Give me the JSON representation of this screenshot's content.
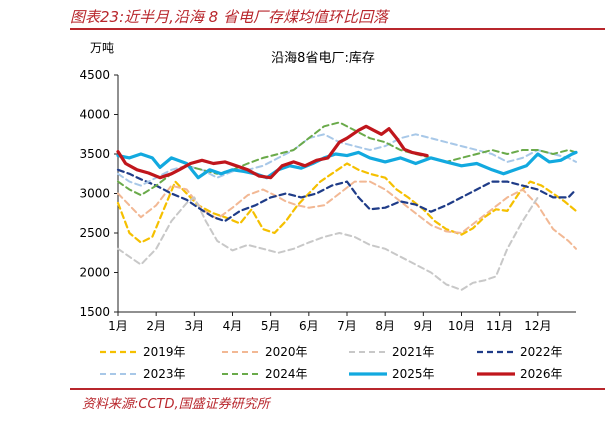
{
  "figure": {
    "title": "图表23:近半月,沿海 8 省电厂存煤均值环比回落",
    "source": "资料来源:CCTD,国盛证券研究所",
    "accent_color": "#b8262c"
  },
  "chart_data": {
    "type": "line",
    "title": "沿海8省电厂:库存",
    "ylabel": "万吨",
    "xlabel": "",
    "ylim": [
      1500,
      4500
    ],
    "yticks": [
      1500,
      2000,
      2500,
      3000,
      3500,
      4000,
      4500
    ],
    "xlim": [
      1,
      13
    ],
    "xtick_labels": [
      "1月",
      "2月",
      "3月",
      "4月",
      "5月",
      "6月",
      "7月",
      "8月",
      "9月",
      "10月",
      "11月",
      "12月"
    ],
    "grid": false,
    "legend_position": "bottom",
    "series": [
      {
        "name": "2019年",
        "color": "#f5c000",
        "dash": "6,4",
        "width": 2.2,
        "points": [
          [
            1,
            2880
          ],
          [
            1.3,
            2500
          ],
          [
            1.6,
            2380
          ],
          [
            1.9,
            2450
          ],
          [
            2.2,
            2800
          ],
          [
            2.5,
            3150
          ],
          [
            2.8,
            3000
          ],
          [
            3.1,
            2850
          ],
          [
            3.5,
            2750
          ],
          [
            3.8,
            2700
          ],
          [
            4.2,
            2620
          ],
          [
            4.5,
            2800
          ],
          [
            4.8,
            2550
          ],
          [
            5.1,
            2500
          ],
          [
            5.4,
            2650
          ],
          [
            5.7,
            2850
          ],
          [
            6.0,
            3000
          ],
          [
            6.3,
            3150
          ],
          [
            6.6,
            3250
          ],
          [
            7.0,
            3380
          ],
          [
            7.3,
            3300
          ],
          [
            7.6,
            3250
          ],
          [
            8.0,
            3200
          ],
          [
            8.3,
            3050
          ],
          [
            8.6,
            2950
          ],
          [
            9.0,
            2800
          ],
          [
            9.3,
            2650
          ],
          [
            9.6,
            2550
          ],
          [
            10.0,
            2480
          ],
          [
            10.3,
            2560
          ],
          [
            10.6,
            2700
          ],
          [
            10.9,
            2800
          ],
          [
            11.2,
            2780
          ],
          [
            11.5,
            3000
          ],
          [
            11.8,
            3150
          ],
          [
            12.1,
            3100
          ],
          [
            12.4,
            3000
          ],
          [
            12.7,
            2900
          ],
          [
            13.0,
            2780
          ]
        ]
      },
      {
        "name": "2020年",
        "color": "#f2b894",
        "dash": "6,4",
        "width": 2,
        "points": [
          [
            1,
            3000
          ],
          [
            1.3,
            2850
          ],
          [
            1.6,
            2700
          ],
          [
            2.0,
            2850
          ],
          [
            2.4,
            3100
          ],
          [
            2.8,
            3050
          ],
          [
            3.2,
            2800
          ],
          [
            3.6,
            2680
          ],
          [
            4.0,
            2820
          ],
          [
            4.4,
            2980
          ],
          [
            4.8,
            3050
          ],
          [
            5.1,
            2980
          ],
          [
            5.4,
            2900
          ],
          [
            5.7,
            2850
          ],
          [
            6.0,
            2820
          ],
          [
            6.4,
            2850
          ],
          [
            6.8,
            3000
          ],
          [
            7.2,
            3150
          ],
          [
            7.6,
            3150
          ],
          [
            8.0,
            3050
          ],
          [
            8.4,
            2900
          ],
          [
            8.8,
            2750
          ],
          [
            9.2,
            2600
          ],
          [
            9.6,
            2520
          ],
          [
            10.0,
            2500
          ],
          [
            10.4,
            2650
          ],
          [
            10.8,
            2800
          ],
          [
            11.2,
            2950
          ],
          [
            11.6,
            3050
          ],
          [
            12.0,
            2850
          ],
          [
            12.4,
            2550
          ],
          [
            12.8,
            2400
          ],
          [
            13.0,
            2300
          ]
        ]
      },
      {
        "name": "2021年",
        "color": "#c8c8c8",
        "dash": "6,4",
        "width": 2,
        "points": [
          [
            1,
            2300
          ],
          [
            1.3,
            2200
          ],
          [
            1.6,
            2100
          ],
          [
            2.0,
            2300
          ],
          [
            2.4,
            2650
          ],
          [
            2.8,
            2880
          ],
          [
            3.0,
            2950
          ],
          [
            3.3,
            2650
          ],
          [
            3.6,
            2400
          ],
          [
            4.0,
            2280
          ],
          [
            4.4,
            2350
          ],
          [
            4.8,
            2300
          ],
          [
            5.2,
            2250
          ],
          [
            5.6,
            2300
          ],
          [
            6.0,
            2380
          ],
          [
            6.4,
            2450
          ],
          [
            6.8,
            2500
          ],
          [
            7.2,
            2450
          ],
          [
            7.6,
            2350
          ],
          [
            8.0,
            2300
          ],
          [
            8.4,
            2200
          ],
          [
            8.8,
            2100
          ],
          [
            9.2,
            2000
          ],
          [
            9.6,
            1850
          ],
          [
            10.0,
            1780
          ],
          [
            10.3,
            1870
          ],
          [
            10.6,
            1900
          ],
          [
            10.9,
            1950
          ],
          [
            11.2,
            2300
          ],
          [
            11.6,
            2650
          ],
          [
            12.0,
            2950
          ]
        ]
      },
      {
        "name": "2022年",
        "color": "#1f3c88",
        "dash": "6,4",
        "width": 2.2,
        "points": [
          [
            1,
            3300
          ],
          [
            1.3,
            3250
          ],
          [
            1.6,
            3180
          ],
          [
            2.0,
            3100
          ],
          [
            2.4,
            3000
          ],
          [
            2.8,
            2920
          ],
          [
            3.1,
            2820
          ],
          [
            3.5,
            2700
          ],
          [
            3.8,
            2650
          ],
          [
            4.2,
            2780
          ],
          [
            4.6,
            2850
          ],
          [
            5.0,
            2950
          ],
          [
            5.4,
            3000
          ],
          [
            5.8,
            2950
          ],
          [
            6.2,
            3000
          ],
          [
            6.6,
            3100
          ],
          [
            7.0,
            3150
          ],
          [
            7.3,
            2950
          ],
          [
            7.6,
            2800
          ],
          [
            8.0,
            2820
          ],
          [
            8.4,
            2900
          ],
          [
            8.8,
            2860
          ],
          [
            9.2,
            2770
          ],
          [
            9.6,
            2850
          ],
          [
            10.0,
            2950
          ],
          [
            10.4,
            3050
          ],
          [
            10.8,
            3150
          ],
          [
            11.2,
            3150
          ],
          [
            11.6,
            3100
          ],
          [
            12.0,
            3050
          ],
          [
            12.4,
            2950
          ],
          [
            12.8,
            2950
          ],
          [
            13.0,
            3050
          ]
        ]
      },
      {
        "name": "2023年",
        "color": "#a8c8e8",
        "dash": "6,4",
        "width": 2,
        "points": [
          [
            1,
            3250
          ],
          [
            1.3,
            3150
          ],
          [
            1.6,
            3100
          ],
          [
            2.0,
            3200
          ],
          [
            2.4,
            3300
          ],
          [
            2.8,
            3350
          ],
          [
            3.2,
            3300
          ],
          [
            3.6,
            3200
          ],
          [
            4.0,
            3280
          ],
          [
            4.4,
            3300
          ],
          [
            4.8,
            3350
          ],
          [
            5.2,
            3450
          ],
          [
            5.6,
            3550
          ],
          [
            6.0,
            3700
          ],
          [
            6.4,
            3750
          ],
          [
            6.8,
            3650
          ],
          [
            7.2,
            3600
          ],
          [
            7.6,
            3550
          ],
          [
            8.0,
            3600
          ],
          [
            8.4,
            3700
          ],
          [
            8.8,
            3750
          ],
          [
            9.2,
            3700
          ],
          [
            9.6,
            3650
          ],
          [
            10.0,
            3600
          ],
          [
            10.4,
            3550
          ],
          [
            10.8,
            3500
          ],
          [
            11.2,
            3400
          ],
          [
            11.6,
            3450
          ],
          [
            12.0,
            3550
          ],
          [
            12.4,
            3500
          ],
          [
            12.8,
            3450
          ],
          [
            13.0,
            3400
          ]
        ]
      },
      {
        "name": "2024年",
        "color": "#6aaa4a",
        "dash": "6,4",
        "width": 2,
        "points": [
          [
            1,
            3150
          ],
          [
            1.3,
            3050
          ],
          [
            1.6,
            2980
          ],
          [
            2.0,
            3100
          ],
          [
            2.4,
            3250
          ],
          [
            2.8,
            3350
          ],
          [
            3.2,
            3300
          ],
          [
            3.6,
            3250
          ],
          [
            4.0,
            3300
          ],
          [
            4.4,
            3380
          ],
          [
            4.8,
            3450
          ],
          [
            5.2,
            3500
          ],
          [
            5.6,
            3550
          ],
          [
            6.0,
            3700
          ],
          [
            6.4,
            3850
          ],
          [
            6.8,
            3900
          ],
          [
            7.2,
            3800
          ],
          [
            7.6,
            3700
          ],
          [
            8.0,
            3650
          ],
          [
            8.4,
            3550
          ],
          [
            8.8,
            3500
          ],
          [
            9.2,
            3450
          ],
          [
            9.6,
            3400
          ],
          [
            10.0,
            3450
          ],
          [
            10.4,
            3500
          ],
          [
            10.8,
            3550
          ],
          [
            11.2,
            3500
          ],
          [
            11.6,
            3550
          ],
          [
            12.0,
            3550
          ],
          [
            12.4,
            3500
          ],
          [
            12.8,
            3550
          ],
          [
            13.0,
            3520
          ]
        ]
      },
      {
        "name": "2025年",
        "color": "#12a9df",
        "dash": "",
        "width": 3.2,
        "points": [
          [
            1,
            3480
          ],
          [
            1.3,
            3450
          ],
          [
            1.6,
            3500
          ],
          [
            1.9,
            3450
          ],
          [
            2.1,
            3330
          ],
          [
            2.4,
            3450
          ],
          [
            2.8,
            3380
          ],
          [
            3.1,
            3200
          ],
          [
            3.4,
            3300
          ],
          [
            3.7,
            3250
          ],
          [
            4.0,
            3300
          ],
          [
            4.3,
            3280
          ],
          [
            4.6,
            3250
          ],
          [
            4.9,
            3200
          ],
          [
            5.2,
            3300
          ],
          [
            5.5,
            3350
          ],
          [
            5.8,
            3320
          ],
          [
            6.1,
            3380
          ],
          [
            6.4,
            3450
          ],
          [
            6.7,
            3500
          ],
          [
            7.0,
            3480
          ],
          [
            7.3,
            3520
          ],
          [
            7.6,
            3450
          ],
          [
            8.0,
            3400
          ],
          [
            8.4,
            3450
          ],
          [
            8.8,
            3380
          ],
          [
            9.2,
            3450
          ],
          [
            9.6,
            3400
          ],
          [
            10.0,
            3350
          ],
          [
            10.4,
            3380
          ],
          [
            10.8,
            3300
          ],
          [
            11.1,
            3250
          ],
          [
            11.4,
            3300
          ],
          [
            11.7,
            3350
          ],
          [
            12.0,
            3500
          ],
          [
            12.3,
            3400
          ],
          [
            12.6,
            3420
          ],
          [
            12.9,
            3500
          ],
          [
            13.0,
            3520
          ]
        ]
      },
      {
        "name": "2026年",
        "color": "#c0161c",
        "dash": "",
        "width": 3.2,
        "points": [
          [
            1,
            3530
          ],
          [
            1.2,
            3380
          ],
          [
            1.5,
            3300
          ],
          [
            1.8,
            3260
          ],
          [
            2.1,
            3200
          ],
          [
            2.4,
            3250
          ],
          [
            2.6,
            3300
          ],
          [
            2.9,
            3380
          ],
          [
            3.2,
            3420
          ],
          [
            3.5,
            3380
          ],
          [
            3.8,
            3400
          ],
          [
            4.1,
            3350
          ],
          [
            4.4,
            3300
          ],
          [
            4.7,
            3220
          ],
          [
            5.0,
            3200
          ],
          [
            5.3,
            3350
          ],
          [
            5.6,
            3400
          ],
          [
            5.9,
            3350
          ],
          [
            6.2,
            3420
          ],
          [
            6.5,
            3450
          ],
          [
            6.8,
            3650
          ],
          [
            7.0,
            3700
          ],
          [
            7.3,
            3800
          ],
          [
            7.5,
            3850
          ],
          [
            7.7,
            3800
          ],
          [
            7.9,
            3750
          ],
          [
            8.1,
            3820
          ],
          [
            8.3,
            3700
          ],
          [
            8.5,
            3560
          ],
          [
            8.7,
            3520
          ],
          [
            8.9,
            3500
          ],
          [
            9.1,
            3480
          ]
        ]
      }
    ]
  }
}
